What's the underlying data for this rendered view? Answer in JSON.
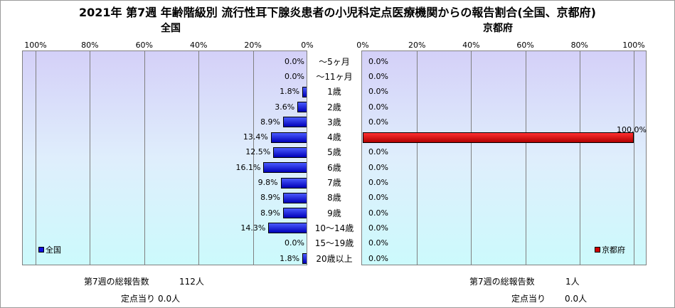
{
  "title": "2021年 第7週 年齢階級別 流行性耳下腺炎患者の小児科定点医療機関からの報告割合(全国、京都府)",
  "colors": {
    "national": "#1010e0",
    "kyoto": "#d00000"
  },
  "panels": {
    "national": {
      "title": "全国",
      "ticks": [
        "100%",
        "80%",
        "60%",
        "40%",
        "20%",
        "0%"
      ],
      "legend": "全国",
      "total_label": "第7週の総報告数",
      "total_value": "112人",
      "per_site_label": "定点当り",
      "per_site_value": "0.0人"
    },
    "kyoto": {
      "title": "京都府",
      "ticks": [
        "0%",
        "20%",
        "40%",
        "60%",
        "80%",
        "100%"
      ],
      "legend": "京都府",
      "total_label": "第7週の総報告数",
      "total_value": "1人",
      "per_site_label": "定点当り",
      "per_site_value": "0.0人"
    }
  },
  "chart_data": {
    "type": "bar",
    "orientation": "horizontal-butterfly",
    "title": "2021年 第7週 年齢階級別 流行性耳下腺炎患者の小児科定点医療機関からの報告割合(全国、京都府)",
    "categories": [
      "～5ヶ月",
      "～11ヶ月",
      "1歳",
      "2歳",
      "3歳",
      "4歳",
      "5歳",
      "6歳",
      "7歳",
      "8歳",
      "9歳",
      "10～14歳",
      "15～19歳",
      "20歳以上"
    ],
    "xlim": [
      0,
      100
    ],
    "unit": "%",
    "grid": true,
    "series": [
      {
        "name": "全国",
        "values": [
          0.0,
          0.0,
          1.8,
          3.6,
          8.9,
          13.4,
          12.5,
          16.1,
          9.8,
          8.9,
          8.9,
          14.3,
          0.0,
          1.8
        ],
        "labels": [
          "0.0%",
          "0.0%",
          "1.8%",
          "3.6%",
          "8.9%",
          "13.4%",
          "12.5%",
          "16.1%",
          "9.8%",
          "8.9%",
          "8.9%",
          "14.3%",
          "0.0%",
          "1.8%"
        ]
      },
      {
        "name": "京都府",
        "values": [
          0,
          0,
          0,
          0,
          0,
          100,
          0,
          0,
          0,
          0,
          0,
          0,
          0,
          0
        ],
        "labels": [
          "0.0%",
          "0.0%",
          "0.0%",
          "0.0%",
          "0.0%",
          "100.0%",
          "0.0%",
          "0.0%",
          "0.0%",
          "0.0%",
          "0.0%",
          "0.0%",
          "0.0%",
          "0.0%"
        ]
      }
    ],
    "legend_placement": "bottom-left / bottom-right"
  }
}
